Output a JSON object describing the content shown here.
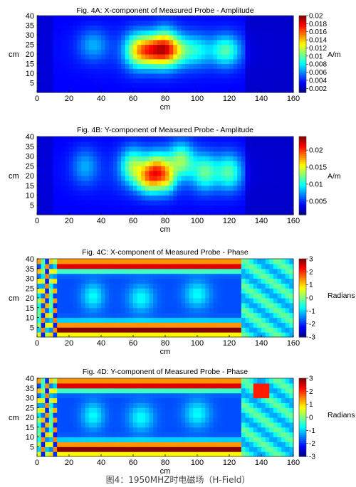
{
  "caption": "图4：1950MHZ时电磁场（H-Field）",
  "chart_data": [
    {
      "type": "heatmap",
      "title": "Fig. 4A: X-component of Measured Probe - Amplitude",
      "xlabel": "cm",
      "ylabel": "cm",
      "xlim": [
        0,
        160
      ],
      "ylim": [
        0,
        40
      ],
      "xticks": [
        "0",
        "20",
        "40",
        "60",
        "80",
        "100",
        "120",
        "140",
        "160"
      ],
      "yticks": [
        "5",
        "10",
        "15",
        "20",
        "25",
        "30",
        "35",
        "40"
      ],
      "colorbar": {
        "label": "A/m",
        "min": 0.001,
        "max": 0.02,
        "ticks": [
          "0.02",
          "0.018",
          "0.016",
          "0.014",
          "0.012",
          "0.01",
          "0.008",
          "0.006",
          "0.004",
          "0.002"
        ]
      },
      "field": "amp",
      "hotspots": [
        [
          72,
          22,
          0.55
        ],
        [
          86,
          22,
          0.35
        ],
        [
          35,
          25,
          0.15
        ],
        [
          100,
          22,
          0.2
        ],
        [
          118,
          22,
          0.3
        ]
      ]
    },
    {
      "type": "heatmap",
      "title": "Fig. 4B: Y-component of Measured Probe - Amplitude",
      "xlabel": "cm",
      "ylabel": "cm",
      "xlim": [
        0,
        160
      ],
      "ylim": [
        0,
        40
      ],
      "xticks": [
        "0",
        "20",
        "40",
        "60",
        "80",
        "100",
        "120",
        "140",
        "160"
      ],
      "yticks": [
        "5",
        "10",
        "15",
        "20",
        "25",
        "30",
        "35",
        "40"
      ],
      "colorbar": {
        "label": "A/m",
        "min": 0.001,
        "max": 0.024,
        "ticks": [
          "0.02",
          "0.015",
          "0.01",
          "0.005"
        ]
      },
      "field": "amp2",
      "hotspots": [
        [
          75,
          22,
          0.6
        ],
        [
          60,
          25,
          0.35
        ],
        [
          90,
          28,
          0.35
        ],
        [
          105,
          22,
          0.3
        ],
        [
          120,
          22,
          0.3
        ],
        [
          30,
          25,
          0.15
        ]
      ]
    },
    {
      "type": "heatmap",
      "title": "Fig. 4C: X-component of Measured Probe - Phase",
      "xlabel": "cm",
      "ylabel": "cm",
      "xlim": [
        0,
        160
      ],
      "ylim": [
        0,
        40
      ],
      "xticks": [
        "0",
        "20",
        "40",
        "60",
        "80",
        "100",
        "120",
        "140",
        "160"
      ],
      "yticks": [
        "5",
        "10",
        "15",
        "20",
        "25",
        "30",
        "35",
        "40"
      ],
      "colorbar": {
        "label": "Radians",
        "min": -3,
        "max": 3,
        "ticks": [
          "3",
          "2",
          "1",
          "0",
          "-1",
          "-2",
          "-3"
        ]
      },
      "field": "phase"
    },
    {
      "type": "heatmap",
      "title": "Fig. 4D: Y-component of Measured Probe - Phase",
      "xlabel": "cm",
      "ylabel": "cm",
      "xlim": [
        0,
        160
      ],
      "ylim": [
        0,
        40
      ],
      "xticks": [
        "0",
        "20",
        "40",
        "60",
        "80",
        "100",
        "120",
        "140",
        "160"
      ],
      "yticks": [
        "5",
        "10",
        "15",
        "20",
        "25",
        "30",
        "35",
        "40"
      ],
      "colorbar": {
        "label": "Radians",
        "min": -3,
        "max": 3,
        "ticks": [
          "3",
          "2",
          "1",
          "0",
          "-1",
          "-2",
          "-3"
        ]
      },
      "field": "phase2"
    }
  ]
}
